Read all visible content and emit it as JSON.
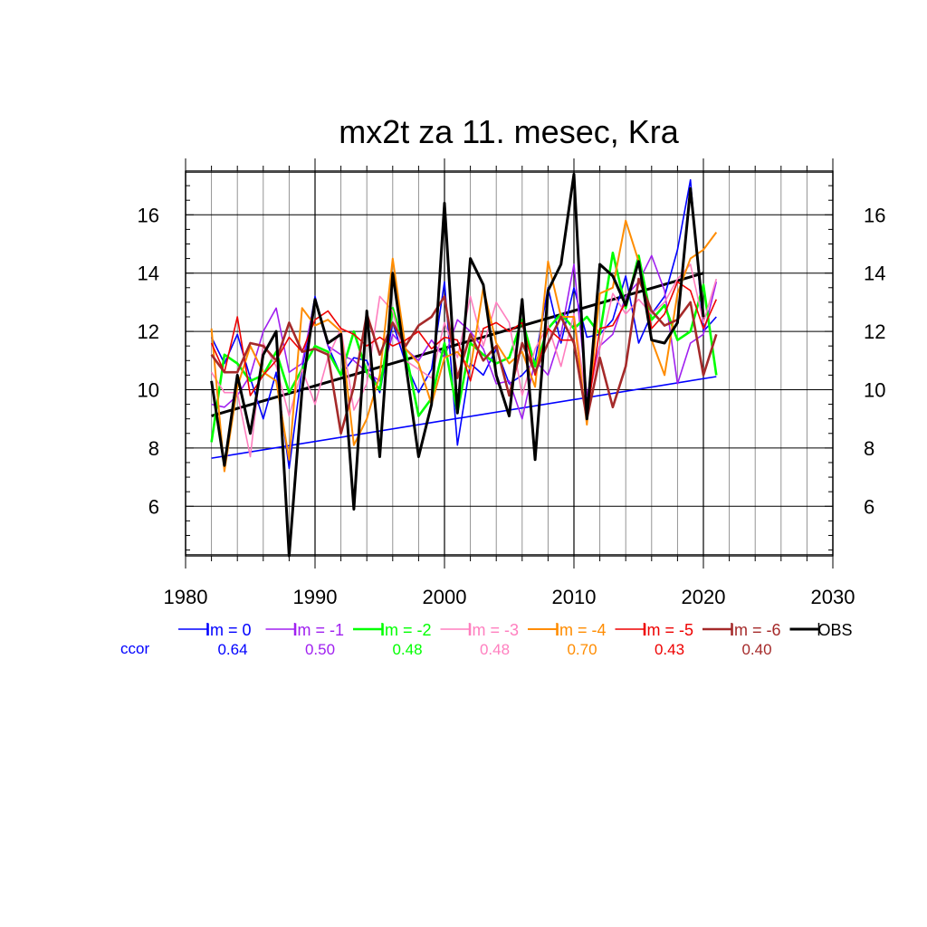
{
  "chart_data": {
    "type": "line",
    "title": "mx2t za 11. mesec, Kra",
    "xlabel": "",
    "ylabel": "",
    "xlim": [
      1980,
      2030
    ],
    "ylim": [
      4.3,
      17.5
    ],
    "x_ticks": [
      1980,
      1990,
      2000,
      2010,
      2020,
      2030
    ],
    "y_ticks": [
      6,
      8,
      10,
      12,
      14,
      16
    ],
    "x_tick_labels": [
      "1980",
      "1990",
      "2000",
      "2010",
      "2020",
      "2030"
    ],
    "y_tick_labels": [
      "6",
      "8",
      "10",
      "12",
      "14",
      "16"
    ],
    "grid": true,
    "legend_position": "bottom",
    "ccor_label": "ccor",
    "x": [
      1982,
      1983,
      1984,
      1985,
      1986,
      1987,
      1988,
      1989,
      1990,
      1991,
      1992,
      1993,
      1994,
      1995,
      1996,
      1997,
      1998,
      1999,
      2000,
      2001,
      2002,
      2003,
      2004,
      2005,
      2006,
      2007,
      2008,
      2009,
      2010,
      2011,
      2012,
      2013,
      2014,
      2015,
      2016,
      2017,
      2018,
      2019,
      2020,
      2021
    ],
    "series": [
      {
        "name": "lm = 0",
        "color": "#0000ff",
        "ccor": "0.64",
        "width": 1.6,
        "values": [
          11.8,
          10.9,
          11.9,
          10.4,
          9.0,
          10.6,
          7.3,
          10.7,
          13.2,
          11.5,
          10.5,
          11.1,
          11.0,
          9.9,
          12.3,
          10.9,
          9.9,
          10.7,
          13.7,
          8.1,
          10.9,
          10.5,
          11.4,
          10.2,
          10.5,
          11.0,
          13.5,
          11.6,
          13.5,
          11.8,
          11.9,
          12.4,
          13.9,
          11.6,
          12.6,
          13.2,
          14.8,
          17.2,
          12.0,
          12.5
        ]
      },
      {
        "name": "lm = -1",
        "color": "#a020f0",
        "ccor": "0.50",
        "width": 1.6,
        "values": [
          9.5,
          9.4,
          9.8,
          10.5,
          12.0,
          12.8,
          10.6,
          10.9,
          13.1,
          11.5,
          11.2,
          11.0,
          10.6,
          10.3,
          11.9,
          11.4,
          11.0,
          11.7,
          11.1,
          12.4,
          12.0,
          11.4,
          10.2,
          10.3,
          9.0,
          11.0,
          10.5,
          11.9,
          14.3,
          9.8,
          11.5,
          11.9,
          13.2,
          13.7,
          14.6,
          13.4,
          10.2,
          11.6,
          11.9,
          13.7
        ]
      },
      {
        "name": "lm = -2",
        "color": "#00ff00",
        "ccor": "0.48",
        "width": 2.6,
        "values": [
          8.2,
          11.2,
          10.9,
          10.3,
          10.5,
          11.3,
          9.9,
          10.7,
          11.5,
          11.3,
          10.5,
          12.0,
          10.6,
          10.0,
          12.8,
          11.3,
          9.1,
          9.7,
          11.6,
          9.2,
          11.6,
          11.2,
          10.9,
          11.1,
          12.4,
          10.8,
          12.1,
          12.6,
          12.1,
          12.5,
          11.9,
          14.7,
          12.8,
          14.6,
          12.4,
          12.9,
          11.7,
          12.0,
          13.6,
          10.5
        ]
      },
      {
        "name": "lm = -3",
        "color": "#ff7fbf",
        "ccor": "0.48",
        "width": 1.6,
        "values": [
          10.6,
          9.9,
          9.9,
          7.7,
          11.6,
          10.8,
          9.1,
          10.7,
          9.5,
          11.1,
          12.1,
          9.3,
          10.2,
          13.2,
          12.7,
          11.0,
          10.7,
          10.4,
          12.3,
          11.1,
          13.2,
          11.5,
          13.0,
          12.3,
          9.8,
          11.4,
          12.2,
          10.8,
          12.6,
          9.5,
          11.4,
          13.3,
          12.6,
          13.1,
          12.6,
          13.0,
          13.8,
          14.3,
          12.3,
          13.8
        ]
      },
      {
        "name": "lm = -4",
        "color": "#ff8c00",
        "ccor": "0.70",
        "width": 2.0,
        "values": [
          12.1,
          7.2,
          10.1,
          11.5,
          10.6,
          10.3,
          7.6,
          12.8,
          12.2,
          12.4,
          12.0,
          8.1,
          9.0,
          10.5,
          14.5,
          11.4,
          10.9,
          9.5,
          11.1,
          11.3,
          10.7,
          13.5,
          11.6,
          10.9,
          11.3,
          10.1,
          14.4,
          12.5,
          12.5,
          8.8,
          13.3,
          13.5,
          15.8,
          14.4,
          11.7,
          10.5,
          13.3,
          14.5,
          14.8,
          15.4
        ]
      },
      {
        "name": "lm = -5",
        "color": "#ee0000",
        "ccor": "0.43",
        "width": 1.6,
        "values": [
          11.6,
          10.6,
          12.5,
          9.8,
          10.5,
          11.0,
          11.8,
          11.3,
          12.4,
          12.7,
          12.1,
          11.9,
          11.5,
          11.8,
          11.5,
          11.7,
          12.0,
          11.4,
          11.8,
          11.7,
          10.3,
          12.1,
          12.3,
          12.0,
          12.3,
          10.5,
          12.1,
          11.7,
          11.7,
          9.1,
          12.1,
          12.2,
          13.0,
          14.4,
          12.1,
          12.6,
          13.7,
          13.4,
          12.1,
          13.1
        ]
      },
      {
        "name": "lm = -6",
        "color": "#a52a2a",
        "ccor": "0.40",
        "width": 2.6,
        "values": [
          11.2,
          10.6,
          10.6,
          11.6,
          11.5,
          11.0,
          12.3,
          11.3,
          11.4,
          11.2,
          8.5,
          10.1,
          12.6,
          11.2,
          12.3,
          11.5,
          12.2,
          12.5,
          13.2,
          10.4,
          11.9,
          11.0,
          11.5,
          9.8,
          11.6,
          10.6,
          11.6,
          12.5,
          11.6,
          9.0,
          11.1,
          9.4,
          10.8,
          13.8,
          12.7,
          12.2,
          12.4,
          13.0,
          10.5,
          11.9
        ]
      },
      {
        "name": "OBS",
        "color": "#000000",
        "ccor": "",
        "width": 3.0,
        "values": [
          10.3,
          7.4,
          10.5,
          8.5,
          11.2,
          12.0,
          4.3,
          10.0,
          13.1,
          11.6,
          11.9,
          5.9,
          12.7,
          7.7,
          14.0,
          10.9,
          7.7,
          9.5,
          16.4,
          9.2,
          14.5,
          13.6,
          10.5,
          9.1,
          13.1,
          7.6,
          13.4,
          14.3,
          17.4,
          9.0,
          14.3,
          13.9,
          12.9,
          14.4,
          11.7,
          11.6,
          12.3,
          16.9,
          12.5,
          null
        ]
      }
    ],
    "trends": [
      {
        "name": "lm = 0 trend",
        "color": "#0000ff",
        "width": 1.6,
        "x": [
          1982,
          2021
        ],
        "y": [
          7.65,
          10.45
        ]
      },
      {
        "name": "OBS trend",
        "color": "#000000",
        "width": 3.0,
        "x": [
          1982,
          2020
        ],
        "y": [
          9.1,
          14.0
        ]
      }
    ]
  }
}
